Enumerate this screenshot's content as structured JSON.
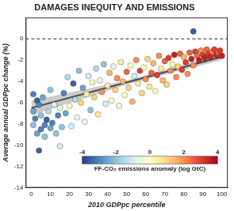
{
  "chart_data": {
    "type": "scatter",
    "title": "DAMAGES INEQUITY AND EMISSIONS",
    "x_label": "2010 GDPpc percentile",
    "y_label": "Average annual GDPpc change (%)",
    "xlim": [
      -3,
      103
    ],
    "xticks": [
      0,
      10,
      20,
      30,
      40,
      50,
      60,
      70,
      80,
      90,
      100
    ],
    "ylim": [
      -14,
      2
    ],
    "yticks": [
      -14,
      -12,
      -10,
      -8,
      -6,
      -4,
      -2,
      0
    ],
    "grid": false,
    "marker": "circle",
    "x": [
      1,
      1,
      1,
      2,
      3,
      3,
      4,
      4,
      5,
      5,
      6,
      7,
      7,
      8,
      9,
      10,
      10,
      11,
      12,
      13,
      14,
      15,
      15,
      16,
      17,
      18,
      19,
      20,
      21,
      22,
      23,
      24,
      25,
      26,
      27,
      28,
      29,
      30,
      31,
      32,
      33,
      34,
      35,
      36,
      37,
      38,
      39,
      40,
      41,
      42,
      43,
      44,
      45,
      46,
      47,
      48,
      49,
      50,
      51,
      52,
      53,
      54,
      55,
      56,
      57,
      58,
      59,
      60,
      61,
      62,
      63,
      64,
      65,
      66,
      67,
      68,
      69,
      70,
      71,
      72,
      73,
      74,
      75,
      76,
      77,
      78,
      79,
      80,
      81,
      82,
      83,
      84,
      85,
      85,
      86,
      87,
      88,
      89,
      90,
      91,
      92,
      93,
      94,
      95,
      96,
      97,
      98,
      99,
      100
    ],
    "values": [
      -5.2,
      -6.8,
      -8.1,
      -7.5,
      -5.8,
      -8.9,
      -6.2,
      -10.5,
      -7.2,
      -8.5,
      -5.5,
      -8.1,
      -9.2,
      -7.6,
      -6.8,
      -4.8,
      -8.4,
      -7.9,
      -6.2,
      -8.9,
      -7.2,
      -6.5,
      -10.1,
      -8.3,
      -5.1,
      -7.0,
      -3.6,
      -6.3,
      -8.2,
      -4.2,
      -5.7,
      -7.4,
      -3.0,
      -6.0,
      -4.6,
      -7.8,
      -5.2,
      -3.5,
      -6.7,
      -4.1,
      -5.5,
      -2.8,
      -7.1,
      -3.9,
      -5.0,
      -2.4,
      -6.1,
      -4.4,
      -3.2,
      -5.8,
      -2.6,
      -4.8,
      -3.7,
      -6.3,
      -2.2,
      -4.0,
      -5.3,
      -3.1,
      -4.6,
      -2.5,
      -5.9,
      -3.5,
      -2.0,
      -4.2,
      -3.0,
      -5.1,
      -2.7,
      -3.8,
      -1.9,
      -4.5,
      -3.2,
      -2.3,
      -4.9,
      -3.4,
      -1.6,
      -2.8,
      -3.9,
      -2.1,
      -4.3,
      -1.8,
      -3.0,
      -2.4,
      -1.5,
      -3.6,
      -2.6,
      -1.4,
      -2.9,
      -1.7,
      -2.2,
      -3.3,
      -1.3,
      -1.9,
      0.7,
      -2.5,
      -1.2,
      -1.6,
      -2.0,
      -1.1,
      -1.5,
      -1.8,
      -1.0,
      -1.4,
      -1.7,
      -1.2,
      -1.0,
      -1.5,
      -1.3,
      -1.1,
      -1.6
    ],
    "anomaly": [
      -3,
      -2.5,
      -2,
      -3,
      -3.5,
      -2.5,
      -3,
      -3.5,
      -2,
      -3,
      -2.5,
      -3,
      -2,
      -3.5,
      -1.5,
      -2,
      -2.5,
      -3,
      -1,
      -2,
      -3,
      -0.5,
      -1,
      -2,
      -3,
      -2.5,
      -1.5,
      0,
      -1,
      -3.5,
      -1.5,
      -0.5,
      -2,
      1,
      -2.5,
      -0.5,
      0.5,
      -1,
      -2,
      0,
      1,
      -1.5,
      0.5,
      -0.5,
      2,
      -2,
      -1,
      0.5,
      1.5,
      0,
      -0.5,
      1,
      2,
      -0.5,
      0.5,
      1.5,
      0,
      2.5,
      1,
      0,
      1.5,
      -1,
      2,
      0.5,
      3,
      1,
      0,
      2,
      1,
      0.5,
      2.5,
      1.5,
      0,
      3,
      2,
      0.5,
      1.5,
      2.5,
      1,
      3,
      2,
      0,
      3.5,
      2,
      1,
      2.5,
      3,
      1.5,
      3,
      2,
      2.5,
      3.5,
      -3.5,
      2,
      3,
      2.5,
      3.5,
      2,
      3,
      3.5,
      2.5,
      3,
      3.5,
      2,
      3,
      3.5,
      2.5,
      3,
      3.5
    ],
    "colorbar": {
      "label": "FF-CO₂ emissions anomaly (log GtC)",
      "range": [
        -4,
        4
      ],
      "ticks": [
        -4,
        -2,
        0,
        2,
        4
      ]
    },
    "trend": {
      "x": [
        0,
        50,
        100
      ],
      "values": [
        -6.5,
        -4.1,
        -1.7
      ],
      "lower": [
        -7.2,
        -4.3,
        -2.0
      ],
      "upper": [
        -5.8,
        -3.9,
        -1.4
      ]
    },
    "reference_line": 0
  }
}
